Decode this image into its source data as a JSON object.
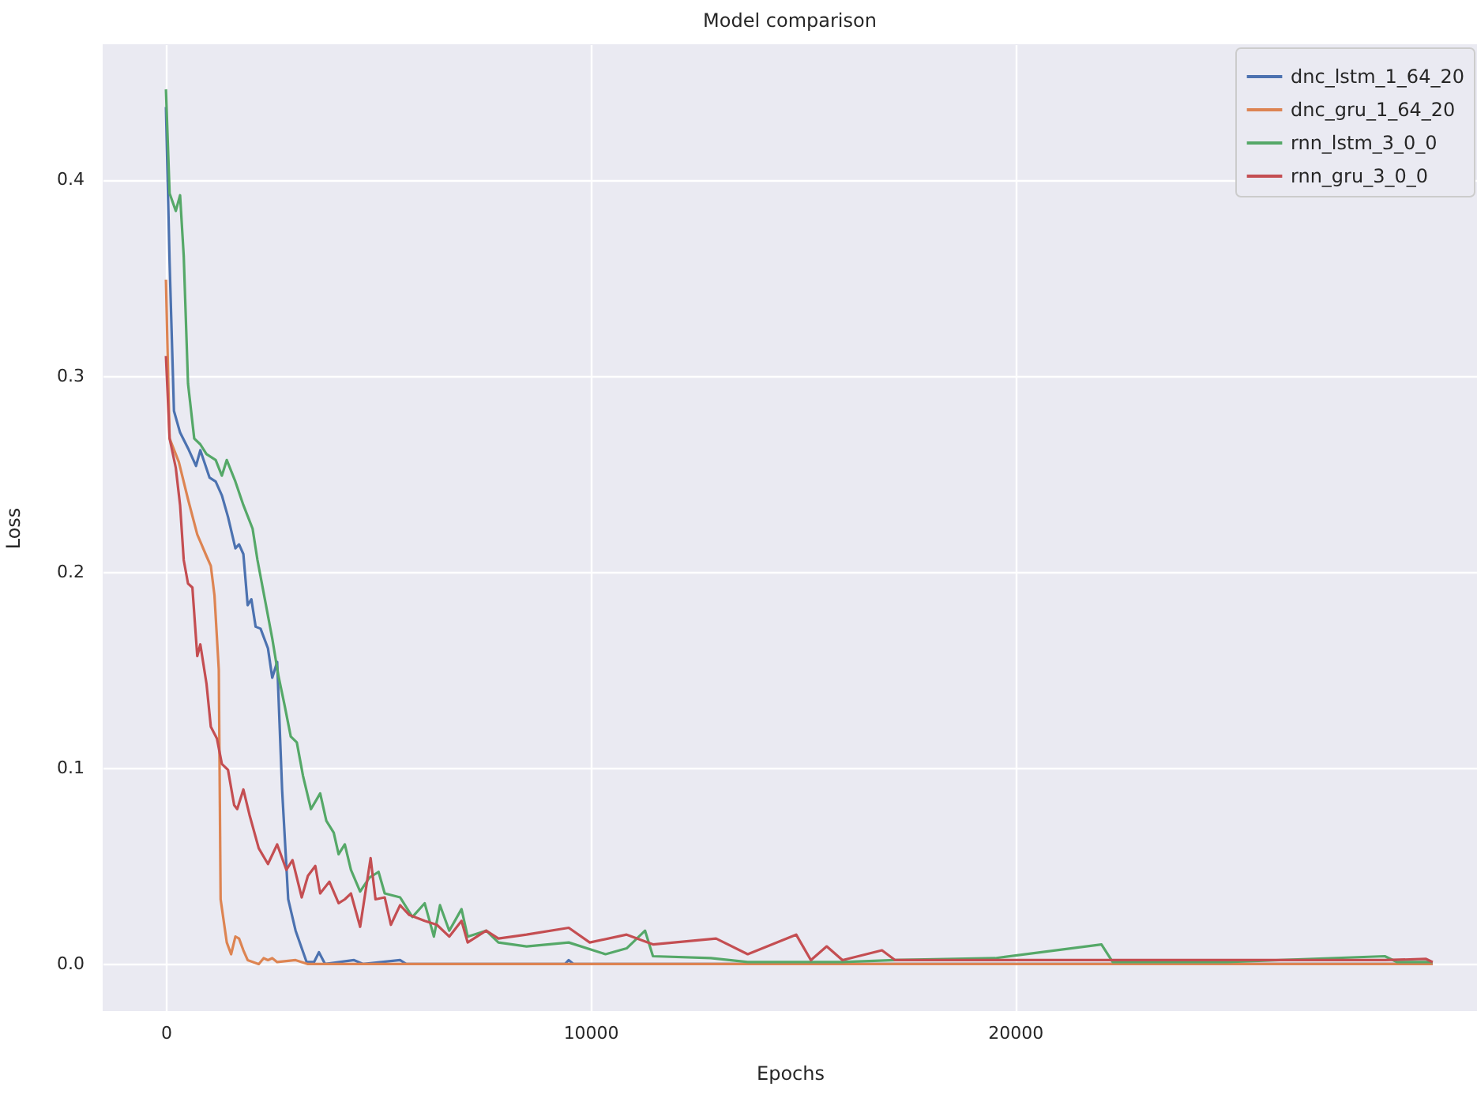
{
  "chart_data": {
    "type": "line",
    "title": "Model comparison",
    "xlabel": "Epochs",
    "ylabel": "Loss",
    "xlim": [
      -1490,
      30880
    ],
    "ylim": [
      -0.024,
      0.469
    ],
    "xticks": [
      0,
      10000,
      20000
    ],
    "yticks": [
      {
        "value": 0,
        "label": "0.0"
      },
      0.1,
      0.2,
      0.3,
      0.4
    ],
    "grid": true,
    "legend": "top right",
    "series": [
      {
        "name": "dnc_lstm_1_64_20",
        "color": "#4c72b0",
        "x": [
          0,
          86,
          189,
          333,
          520,
          709,
          810,
          1028,
          1172,
          1317,
          1462,
          1636,
          1722,
          1824,
          1925,
          2012,
          2113,
          2229,
          2403,
          2504,
          2620,
          2736,
          2880,
          3054,
          3314,
          3488,
          3604,
          3749,
          4430,
          4647,
          5515,
          5660,
          9400,
          9487,
          9600,
          29836
        ],
        "values": [
          0.437,
          0.358,
          0.282,
          0.271,
          0.263,
          0.254,
          0.262,
          0.248,
          0.246,
          0.239,
          0.228,
          0.212,
          0.214,
          0.209,
          0.183,
          0.186,
          0.172,
          0.171,
          0.161,
          0.146,
          0.154,
          0.089,
          0.033,
          0.017,
          0.001,
          0.001,
          0.006,
          0,
          0.002,
          0,
          0.002,
          0,
          0,
          0.002,
          0,
          0
        ]
      },
      {
        "name": "dnc_gru_1_64_20",
        "color": "#dd8452",
        "x": [
          0,
          86,
          304,
          520,
          738,
          955,
          1057,
          1143,
          1245,
          1288,
          1433,
          1535,
          1636,
          1722,
          1824,
          1925,
          2186,
          2302,
          2403,
          2504,
          2620,
          3054,
          3344,
          29836
        ],
        "values": [
          0.349,
          0.268,
          0.256,
          0.237,
          0.219,
          0.208,
          0.203,
          0.188,
          0.15,
          0.033,
          0.011,
          0.005,
          0.014,
          0.013,
          0.007,
          0.002,
          0,
          0.003,
          0.002,
          0.003,
          0.001,
          0.002,
          0,
          0
        ]
      },
      {
        "name": "rnn_lstm_3_0_0",
        "color": "#55a868",
        "x": [
          0,
          86,
          232,
          333,
          419,
          520,
          666,
          810,
          955,
          1172,
          1317,
          1433,
          1636,
          1824,
          2041,
          2156,
          2330,
          2504,
          2649,
          2794,
          2940,
          3083,
          3228,
          3416,
          3633,
          3778,
          3952,
          4067,
          4213,
          4357,
          4574,
          4791,
          5008,
          5153,
          5515,
          5805,
          6094,
          6311,
          6455,
          6673,
          6962,
          7107,
          7542,
          7831,
          8494,
          9487,
          10354,
          10851,
          11285,
          11471,
          12835,
          13703,
          15935,
          17175,
          19531,
          22035,
          22300,
          25000,
          28708,
          29000,
          29836
        ],
        "values": [
          0.446,
          0.393,
          0.384,
          0.392,
          0.361,
          0.296,
          0.268,
          0.265,
          0.26,
          0.257,
          0.249,
          0.257,
          0.246,
          0.234,
          0.222,
          0.206,
          0.186,
          0.166,
          0.147,
          0.132,
          0.116,
          0.113,
          0.096,
          0.079,
          0.087,
          0.073,
          0.067,
          0.056,
          0.061,
          0.048,
          0.037,
          0.044,
          0.047,
          0.036,
          0.034,
          0.024,
          0.031,
          0.014,
          0.03,
          0.017,
          0.028,
          0.014,
          0.017,
          0.011,
          0.009,
          0.011,
          0.005,
          0.008,
          0.017,
          0.004,
          0.003,
          0.001,
          0.001,
          0.002,
          0.003,
          0.01,
          0.001,
          0.001,
          0.004,
          0.001,
          0.001
        ]
      },
      {
        "name": "rnn_gru_3_0_0",
        "color": "#c44e52",
        "x": [
          0,
          86,
          232,
          333,
          419,
          520,
          623,
          738,
          810,
          955,
          1057,
          1201,
          1317,
          1462,
          1607,
          1679,
          1824,
          1969,
          2186,
          2403,
          2620,
          2837,
          2981,
          3198,
          3344,
          3518,
          3633,
          3850,
          4067,
          4213,
          4357,
          4574,
          4821,
          4936,
          5153,
          5298,
          5515,
          5732,
          6094,
          6383,
          6673,
          6962,
          7107,
          7542,
          7831,
          8494,
          9487,
          9982,
          10851,
          11471,
          12958,
          13703,
          14844,
          15191,
          15563,
          15935,
          16865,
          17175,
          19531,
          22035,
          25000,
          28708,
          29680,
          29836
        ],
        "values": [
          0.31,
          0.268,
          0.253,
          0.234,
          0.206,
          0.194,
          0.192,
          0.157,
          0.163,
          0.143,
          0.121,
          0.115,
          0.102,
          0.099,
          0.081,
          0.079,
          0.089,
          0.076,
          0.059,
          0.051,
          0.061,
          0.048,
          0.053,
          0.034,
          0.045,
          0.05,
          0.036,
          0.042,
          0.031,
          0.033,
          0.036,
          0.019,
          0.054,
          0.033,
          0.034,
          0.02,
          0.03,
          0.025,
          0.022,
          0.02,
          0.014,
          0.022,
          0.011,
          0.017,
          0.013,
          0.015,
          0.0185,
          0.011,
          0.015,
          0.01,
          0.013,
          0.005,
          0.015,
          0.002,
          0.009,
          0.002,
          0.007,
          0.002,
          0.002,
          0.002,
          0.002,
          0.002,
          0.0026,
          0.001
        ]
      }
    ]
  }
}
